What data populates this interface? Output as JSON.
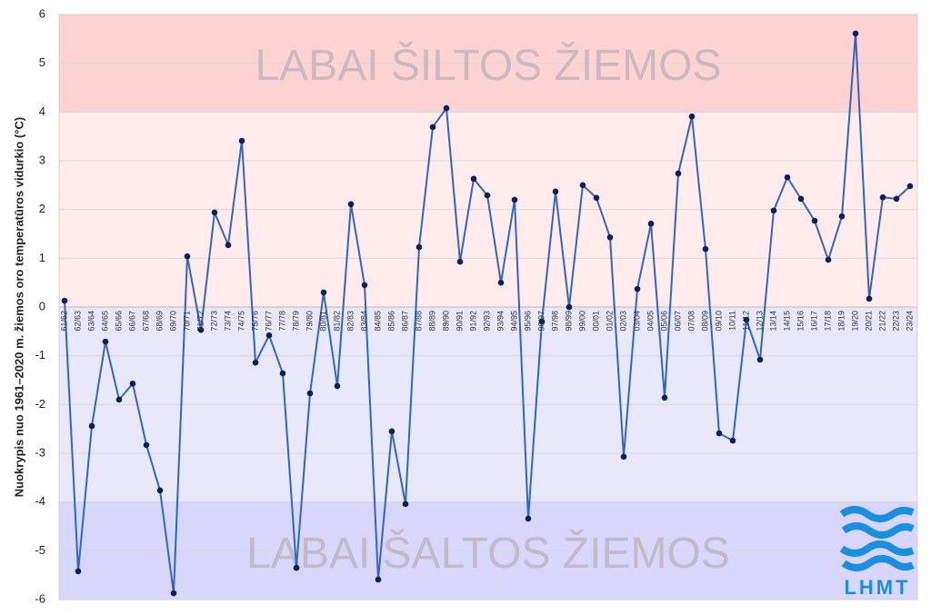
{
  "chart_data": {
    "type": "line",
    "y_label": "Nuokrypis nuo 1961–2020 m. žiemos oro temperatūros vidurkio (°C)",
    "categories": [
      "61/62",
      "62/63",
      "63/64",
      "64/65",
      "65/66",
      "66/67",
      "67/68",
      "68/69",
      "69/70",
      "70/71",
      "71/72",
      "72/73",
      "73/74",
      "74/75",
      "75/76",
      "76/77",
      "77/78",
      "78/79",
      "79/80",
      "80/81",
      "81/82",
      "82/83",
      "83/84",
      "84/85",
      "85/86",
      "86/87",
      "87/88",
      "88/89",
      "89/90",
      "90/91",
      "91/92",
      "92/93",
      "93/94",
      "94/95",
      "95/96",
      "96/97",
      "97/98",
      "98/99",
      "99/00",
      "00/01",
      "01/02",
      "02/03",
      "03/04",
      "04/05",
      "05/06",
      "06/07",
      "07/08",
      "08/09",
      "09/10",
      "10/11",
      "11/12",
      "12/13",
      "13/14",
      "14/15",
      "15/16",
      "16/17",
      "17/18",
      "18/19",
      "19/20",
      "20/21",
      "21/22",
      "22/23",
      "23/24"
    ],
    "series": [
      {
        "color": "#3366b8",
        "marker_color": "#0d1f5c",
        "values": [
          0.13,
          -5.42,
          -2.44,
          -0.71,
          -1.9,
          -1.57,
          -2.83,
          -3.76,
          -5.87,
          1.04,
          -0.47,
          1.94,
          1.27,
          3.41,
          -1.14,
          -0.58,
          -1.36,
          -5.35,
          -1.77,
          0.3,
          -1.62,
          2.11,
          0.45,
          -5.59,
          -2.55,
          -4.04,
          1.23,
          3.69,
          4.08,
          0.93,
          2.63,
          2.29,
          0.5,
          2.2,
          -4.34,
          -0.3,
          2.37,
          0,
          2.5,
          2.24,
          1.43,
          -3.07,
          0.37,
          1.71,
          -1.86,
          2.74,
          3.91,
          1.19,
          -2.59,
          -2.74,
          -0.26,
          -1.08,
          1.98,
          2.66,
          2.22,
          1.77,
          0.97,
          1.86,
          5.61,
          0.17,
          2.25,
          2.22,
          2.48
        ]
      }
    ],
    "ylim": [
      -6,
      6
    ],
    "yticks": [
      -6,
      -5,
      -4,
      -3,
      -2,
      -1,
      0,
      1,
      2,
      3,
      4,
      5,
      6
    ],
    "grid": true,
    "bands": [
      {
        "from": 4,
        "to": 6,
        "color": "#ffd3d3"
      },
      {
        "from": 0,
        "to": 4,
        "color": "#ffebeb"
      },
      {
        "from": -4,
        "to": 0,
        "color": "#e9e8fa"
      },
      {
        "from": -6,
        "to": -4,
        "color": "#d8d6fa"
      }
    ],
    "annotations": [
      "LABAI ŠILTOS ŽIEMOS",
      "LABAI ŠALTOS ŽIEMOS"
    ],
    "logo": "LHMT"
  }
}
